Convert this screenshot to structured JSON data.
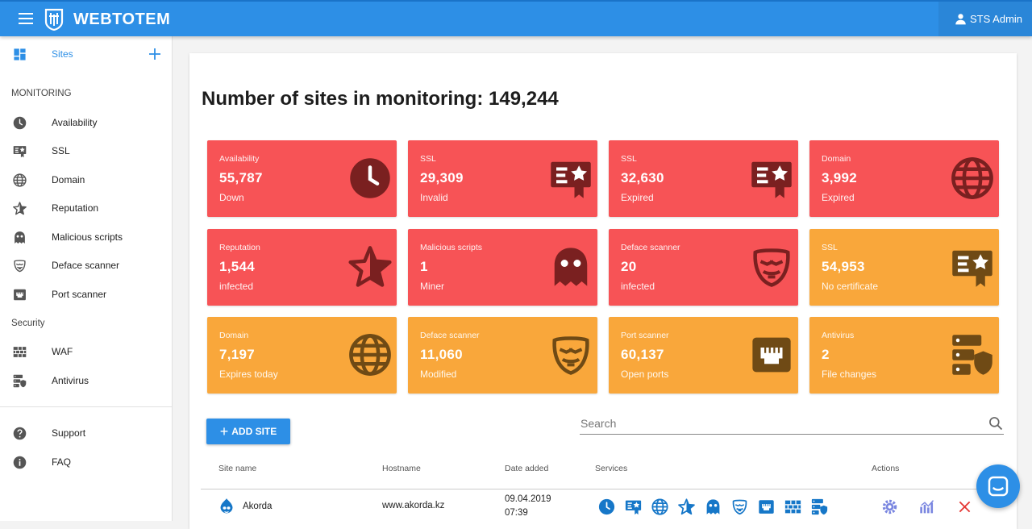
{
  "header": {
    "brand": "WEBTOTEM",
    "user": "STS Admin"
  },
  "sidebar": {
    "sites_label": "Sites",
    "monitoring_heading": "MONITORING",
    "monitoring": [
      {
        "label": "Availability",
        "icon": "clock-icon"
      },
      {
        "label": "SSL",
        "icon": "certificate-icon"
      },
      {
        "label": "Domain",
        "icon": "globe-icon"
      },
      {
        "label": "Reputation",
        "icon": "star-icon"
      },
      {
        "label": "Malicious scripts",
        "icon": "ghost-icon"
      },
      {
        "label": "Deface scanner",
        "icon": "mask-icon"
      },
      {
        "label": "Port scanner",
        "icon": "ethernet-port-icon"
      }
    ],
    "security_heading": "Security",
    "security": [
      {
        "label": "WAF",
        "icon": "firewall-icon"
      },
      {
        "label": "Antivirus",
        "icon": "server-shield-icon"
      }
    ],
    "support": [
      {
        "label": "Support",
        "icon": "help-icon"
      },
      {
        "label": "FAQ",
        "icon": "info-icon"
      }
    ]
  },
  "main": {
    "title": "Number of sites in monitoring: 149,244",
    "tiles": [
      {
        "label": "Availability",
        "value": "55,787",
        "sub": "Down",
        "color": "red",
        "icon": "clock-icon"
      },
      {
        "label": "SSL",
        "value": "29,309",
        "sub": "Invalid",
        "color": "red",
        "icon": "certificate-icon"
      },
      {
        "label": "SSL",
        "value": "32,630",
        "sub": "Expired",
        "color": "red",
        "icon": "certificate-icon"
      },
      {
        "label": "Domain",
        "value": "3,992",
        "sub": "Expired",
        "color": "red",
        "icon": "globe-icon"
      },
      {
        "label": "Reputation",
        "value": "1,544",
        "sub": "infected",
        "color": "red",
        "icon": "star-icon"
      },
      {
        "label": "Malicious scripts",
        "value": "1",
        "sub": "Miner",
        "color": "red",
        "icon": "ghost-icon"
      },
      {
        "label": "Deface scanner",
        "value": "20",
        "sub": "infected",
        "color": "red",
        "icon": "mask-icon"
      },
      {
        "label": "SSL",
        "value": "54,953",
        "sub": "No certificate",
        "color": "orange",
        "icon": "certificate-icon"
      },
      {
        "label": "Domain",
        "value": "7,197",
        "sub": "Expires today",
        "color": "orange",
        "icon": "globe-icon"
      },
      {
        "label": "Deface scanner",
        "value": "11,060",
        "sub": "Modified",
        "color": "orange",
        "icon": "mask-icon"
      },
      {
        "label": "Port scanner",
        "value": "60,137",
        "sub": "Open ports",
        "color": "orange",
        "icon": "ethernet-port-icon"
      },
      {
        "label": "Antivirus",
        "value": "2",
        "sub": "File changes",
        "color": "orange",
        "icon": "server-shield-icon"
      }
    ],
    "add_site_label": "ADD SITE",
    "search_placeholder": "Search",
    "table": {
      "headers": [
        "Site name",
        "Hostname",
        "Date added",
        "Services",
        "Actions"
      ],
      "rows": [
        {
          "site_name": "Akorda",
          "hostname": "www.akorda.kz",
          "date": "09.04.2019",
          "time": "07:39",
          "services": [
            "clock-icon",
            "certificate-icon",
            "globe-icon",
            "star-icon",
            "ghost-icon",
            "mask-icon",
            "ethernet-port-icon",
            "firewall-icon",
            "server-shield-icon"
          ],
          "actions": [
            "settings-icon",
            "chart-icon",
            "delete-icon"
          ]
        }
      ]
    }
  },
  "colors": {
    "accent": "#2d8fe6",
    "red": "#f75356",
    "orange": "#f9a73b",
    "delete": "#e53935"
  }
}
